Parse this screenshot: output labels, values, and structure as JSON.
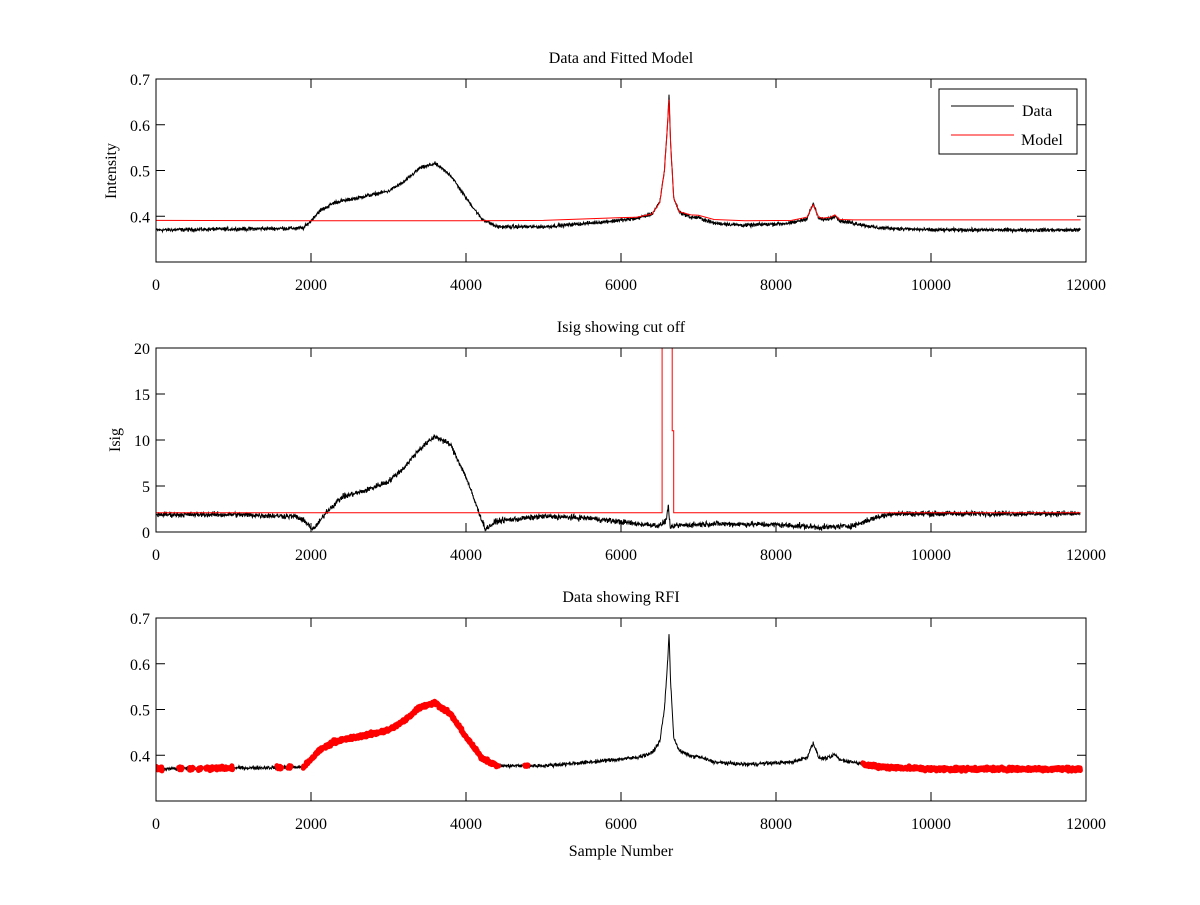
{
  "chart_data": [
    {
      "type": "line",
      "title": "Data and Fitted Model",
      "xlabel": "",
      "ylabel": "Intensity",
      "xlim": [
        0,
        12000
      ],
      "ylim": [
        0.3,
        0.7
      ],
      "xticks": [
        0,
        2000,
        4000,
        6000,
        8000,
        10000,
        12000
      ],
      "xtick_labels": [
        "0",
        "2000",
        "4000",
        "6000",
        "8000",
        "10000",
        "12000"
      ],
      "yticks": [
        0.4,
        0.5,
        0.6,
        0.7
      ],
      "ytick_labels": [
        "0.4",
        "0.5",
        "0.6",
        "0.7"
      ],
      "grid": false,
      "legend": {
        "placement": "top-right",
        "entries": [
          "Data",
          "Model"
        ]
      },
      "series": [
        {
          "name": "Data",
          "color": "#000000",
          "noise": 0.006,
          "x": [
            0,
            1000,
            1900,
            2000,
            2100,
            2300,
            2600,
            3000,
            3200,
            3400,
            3600,
            3800,
            4000,
            4200,
            4400,
            5000,
            5600,
            6200,
            6400,
            6500,
            6560,
            6600,
            6620,
            6640,
            6680,
            6750,
            6900,
            7000,
            7200,
            7600,
            8200,
            8400,
            8480,
            8550,
            8600,
            8700,
            8760,
            8820,
            9000,
            9300,
            10000,
            11000,
            11930
          ],
          "y": [
            0.37,
            0.372,
            0.374,
            0.39,
            0.41,
            0.43,
            0.44,
            0.455,
            0.475,
            0.505,
            0.515,
            0.49,
            0.44,
            0.395,
            0.377,
            0.377,
            0.385,
            0.395,
            0.405,
            0.43,
            0.5,
            0.6,
            0.665,
            0.56,
            0.44,
            0.41,
            0.398,
            0.397,
            0.385,
            0.38,
            0.385,
            0.395,
            0.428,
            0.395,
            0.393,
            0.395,
            0.402,
            0.39,
            0.385,
            0.375,
            0.37,
            0.37,
            0.37
          ]
        },
        {
          "name": "Model",
          "color": "#ff0000",
          "noise": 0,
          "x": [
            0,
            2000,
            4000,
            5000,
            6000,
            6200,
            6400,
            6500,
            6560,
            6600,
            6620,
            6640,
            6680,
            6750,
            6900,
            7000,
            7200,
            7600,
            8200,
            8400,
            8480,
            8550,
            8600,
            8700,
            8760,
            8820,
            9000,
            9200,
            11930
          ],
          "y": [
            0.391,
            0.39,
            0.39,
            0.391,
            0.397,
            0.398,
            0.405,
            0.43,
            0.5,
            0.6,
            0.655,
            0.56,
            0.44,
            0.41,
            0.403,
            0.402,
            0.393,
            0.39,
            0.391,
            0.398,
            0.425,
            0.398,
            0.396,
            0.398,
            0.403,
            0.393,
            0.392,
            0.392,
            0.392
          ]
        }
      ]
    },
    {
      "type": "line",
      "title": "Isig showing cut off",
      "xlabel": "",
      "ylabel": "Isig",
      "xlim": [
        0,
        12000
      ],
      "ylim": [
        0,
        20
      ],
      "xticks": [
        0,
        2000,
        4000,
        6000,
        8000,
        10000,
        12000
      ],
      "xtick_labels": [
        "0",
        "2000",
        "4000",
        "6000",
        "8000",
        "10000",
        "12000"
      ],
      "yticks": [
        0,
        5,
        10,
        15,
        20
      ],
      "ytick_labels": [
        "0",
        "5",
        "10",
        "15",
        "20"
      ],
      "grid": false,
      "series": [
        {
          "name": "Isig",
          "color": "#000000",
          "noise": 0.45,
          "x": [
            0,
            1000,
            1800,
            1950,
            2020,
            2100,
            2200,
            2400,
            2700,
            3000,
            3200,
            3400,
            3600,
            3800,
            4000,
            4150,
            4250,
            4400,
            5000,
            5600,
            6200,
            6500,
            6580,
            6610,
            6640,
            6700,
            7200,
            8000,
            8600,
            9000,
            9300,
            9500,
            10500,
            11930
          ],
          "y": [
            1.9,
            1.9,
            1.7,
            1.0,
            0.2,
            1.0,
            2.2,
            3.8,
            4.5,
            5.5,
            7.0,
            9.0,
            10.4,
            9.5,
            6.0,
            2.5,
            0.3,
            1.2,
            1.7,
            1.5,
            0.9,
            0.7,
            1.2,
            2.8,
            0.3,
            0.7,
            0.9,
            0.8,
            0.5,
            0.7,
            1.6,
            2.0,
            2.0,
            2.0
          ]
        },
        {
          "name": "Cut off",
          "color": "#ff0000",
          "noise": 0,
          "x": [
            0,
            6530,
            6530,
            6660,
            6660,
            6680,
            6680,
            11930
          ],
          "y": [
            2.1,
            2.1,
            20,
            20,
            11,
            11,
            2.1,
            2.1
          ]
        }
      ]
    },
    {
      "type": "scatter",
      "title": "Data showing RFI",
      "xlabel": "Sample Number",
      "ylabel": "",
      "xlim": [
        0,
        12000
      ],
      "ylim": [
        0.3,
        0.7
      ],
      "xticks": [
        0,
        2000,
        4000,
        6000,
        8000,
        10000,
        12000
      ],
      "xtick_labels": [
        "0",
        "2000",
        "4000",
        "6000",
        "8000",
        "10000",
        "12000"
      ],
      "yticks": [
        0.4,
        0.5,
        0.6,
        0.7
      ],
      "ytick_labels": [
        "0.4",
        "0.5",
        "0.6",
        "0.7"
      ],
      "grid": false,
      "series": [
        {
          "name": "Data",
          "color": "#000000",
          "noise": 0.006,
          "x": [
            0,
            1000,
            1900,
            2000,
            2100,
            2300,
            2600,
            3000,
            3200,
            3400,
            3600,
            3800,
            4000,
            4200,
            4400,
            5000,
            5600,
            6200,
            6400,
            6500,
            6560,
            6600,
            6620,
            6640,
            6680,
            6750,
            6900,
            7000,
            7200,
            7600,
            8200,
            8400,
            8480,
            8550,
            8600,
            8700,
            8760,
            8820,
            9000,
            9300,
            10000,
            11000,
            11930
          ],
          "y": [
            0.37,
            0.372,
            0.374,
            0.39,
            0.41,
            0.43,
            0.44,
            0.455,
            0.475,
            0.505,
            0.515,
            0.49,
            0.44,
            0.395,
            0.377,
            0.377,
            0.385,
            0.395,
            0.405,
            0.43,
            0.5,
            0.6,
            0.665,
            0.56,
            0.44,
            0.41,
            0.398,
            0.397,
            0.385,
            0.38,
            0.385,
            0.395,
            0.428,
            0.395,
            0.393,
            0.395,
            0.402,
            0.39,
            0.385,
            0.375,
            0.37,
            0.37,
            0.37
          ]
        },
        {
          "name": "RFI flagged",
          "color": "#ff0000",
          "flagged_ranges": [
            [
              0,
              80
            ],
            [
              290,
              340
            ],
            [
              430,
              480
            ],
            [
              540,
              580
            ],
            [
              640,
              990
            ],
            [
              1560,
              1620
            ],
            [
              1700,
              1740
            ],
            [
              1900,
              4420
            ],
            [
              4760,
              4800
            ],
            [
              9120,
              11930
            ]
          ]
        }
      ]
    }
  ]
}
